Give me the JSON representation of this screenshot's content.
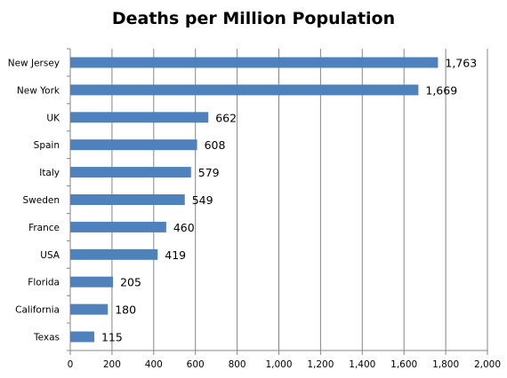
{
  "chart_data": {
    "type": "bar",
    "orientation": "horizontal",
    "title": "Deaths per Million Population",
    "xlabel": "",
    "ylabel": "",
    "categories": [
      "New Jersey",
      "New York",
      "UK",
      "Spain",
      "Italy",
      "Sweden",
      "France",
      "USA",
      "Florida",
      "California",
      "Texas"
    ],
    "values": [
      1763,
      1669,
      662,
      608,
      579,
      549,
      460,
      419,
      205,
      180,
      115
    ],
    "data_labels": [
      "1,763",
      "1,669",
      "662",
      "608",
      "579",
      "549",
      "460",
      "419",
      "205",
      "180",
      "115"
    ],
    "xlim": [
      0,
      2000
    ],
    "x_ticks": [
      0,
      200,
      400,
      600,
      800,
      1000,
      1200,
      1400,
      1600,
      1800,
      2000
    ],
    "x_tick_labels": [
      "0",
      "200",
      "400",
      "600",
      "800",
      "1,000",
      "1,200",
      "1,400",
      "1,600",
      "1,800",
      "2,000"
    ],
    "grid": "vertical",
    "legend": "none",
    "bar_color": "#4F81BD",
    "grid_color": "#868686"
  }
}
